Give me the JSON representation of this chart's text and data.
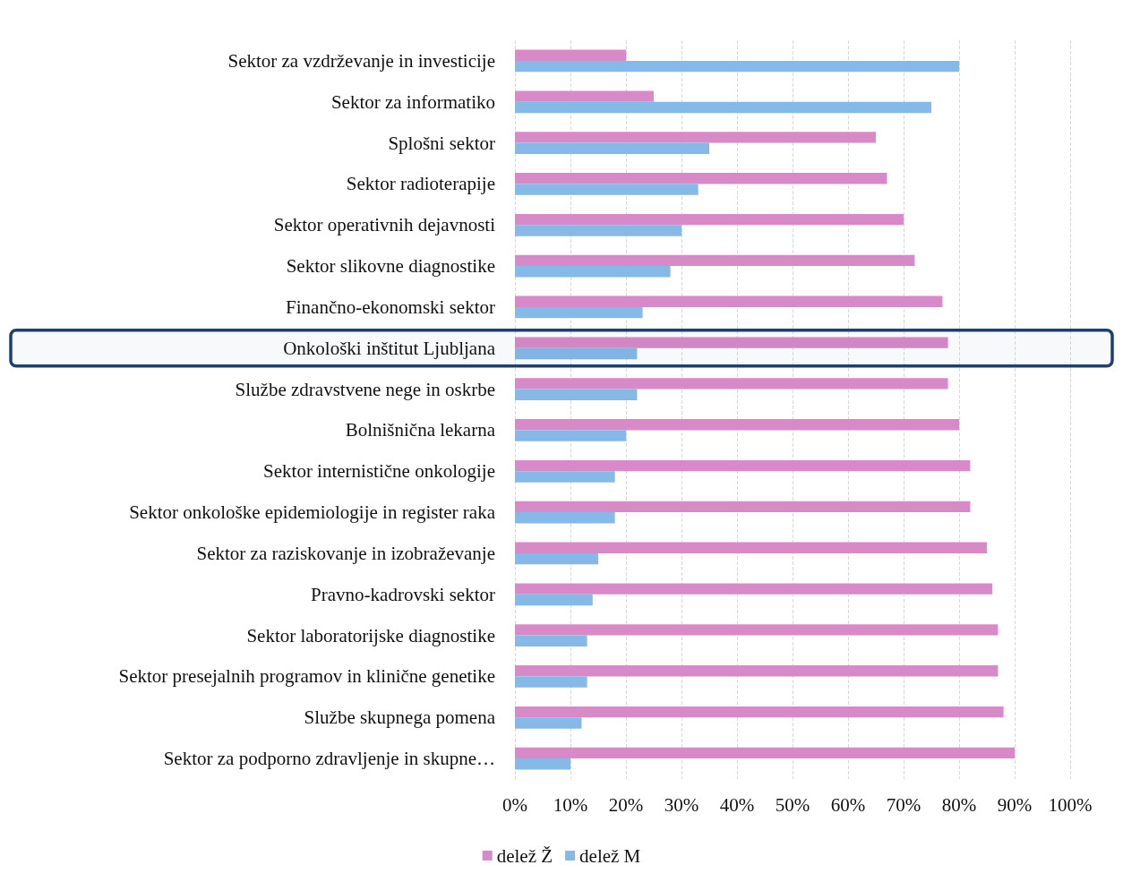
{
  "chart_data": {
    "type": "bar",
    "orientation": "horizontal",
    "categories": [
      "Sektor za vzdrževanje in investicije",
      "Sektor za informatiko",
      "Splošni sektor",
      "Sektor radioterapije",
      "Sektor operativnih dejavnosti",
      "Sektor slikovne diagnostike",
      "Finančno-ekonomski sektor",
      "Onkološki inštitut Ljubljana",
      "Službe zdravstvene nege in oskrbe",
      "Bolnišnična lekarna",
      "Sektor internistične onkologije",
      "Sektor onkološke epidemiologije in register raka",
      "Sektor za raziskovanje in izobraževanje",
      "Pravno-kadrovski sektor",
      "Sektor laboratorijske diagnostike",
      "Sektor presejalnih programov in klinične genetike",
      "Službe skupnega pomena",
      "Sektor za podporno zdravljenje in skupne…"
    ],
    "series": [
      {
        "name": "delež Ž",
        "color": "#d88ac8",
        "values": [
          20,
          25,
          65,
          67,
          70,
          72,
          77,
          78,
          78,
          80,
          82,
          82,
          85,
          86,
          87,
          87,
          88,
          90
        ]
      },
      {
        "name": "delež M",
        "color": "#84b9e8",
        "values": [
          80,
          75,
          35,
          33,
          30,
          28,
          23,
          22,
          22,
          20,
          18,
          18,
          15,
          14,
          13,
          13,
          12,
          10
        ]
      }
    ],
    "xlim": [
      0,
      100
    ],
    "xticks": [
      {
        "value": 0,
        "label": "0%"
      },
      {
        "value": 10,
        "label": "10%"
      },
      {
        "value": 20,
        "label": "20%"
      },
      {
        "value": 30,
        "label": "30%"
      },
      {
        "value": 40,
        "label": "40%"
      },
      {
        "value": 50,
        "label": "50%"
      },
      {
        "value": 60,
        "label": "60%"
      },
      {
        "value": 70,
        "label": "70%"
      },
      {
        "value": 80,
        "label": "80%"
      },
      {
        "value": 90,
        "label": "90%"
      },
      {
        "value": 100,
        "label": "100%"
      }
    ],
    "grid": "x",
    "legend": "bottom",
    "bands": [
      {
        "axis": "y",
        "from": "Onkološki inštitut Ljubljana",
        "to": "Onkološki inštitut Ljubljana",
        "color": "#1f3f6e"
      }
    ]
  }
}
